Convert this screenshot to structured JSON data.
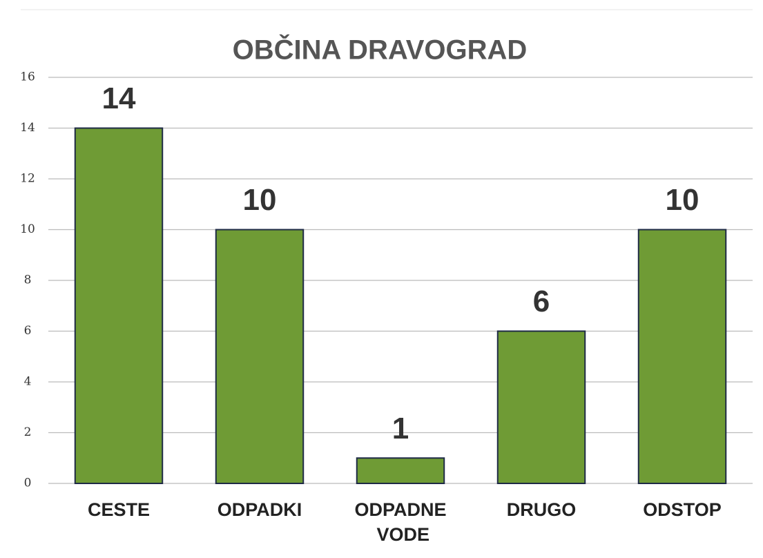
{
  "chart_data": {
    "type": "bar",
    "title": "OBČINA DRAVOGRAD",
    "categories": [
      "CESTE",
      "ODPADKI",
      "ODPADNE VODE",
      "DRUGO",
      "ODSTOP"
    ],
    "values": [
      14,
      10,
      1,
      6,
      10
    ],
    "color": "#6f9b35",
    "ylim": [
      0,
      16
    ],
    "yticks": [
      0,
      2,
      4,
      6,
      8,
      10,
      12,
      14,
      16
    ],
    "grid": true
  }
}
